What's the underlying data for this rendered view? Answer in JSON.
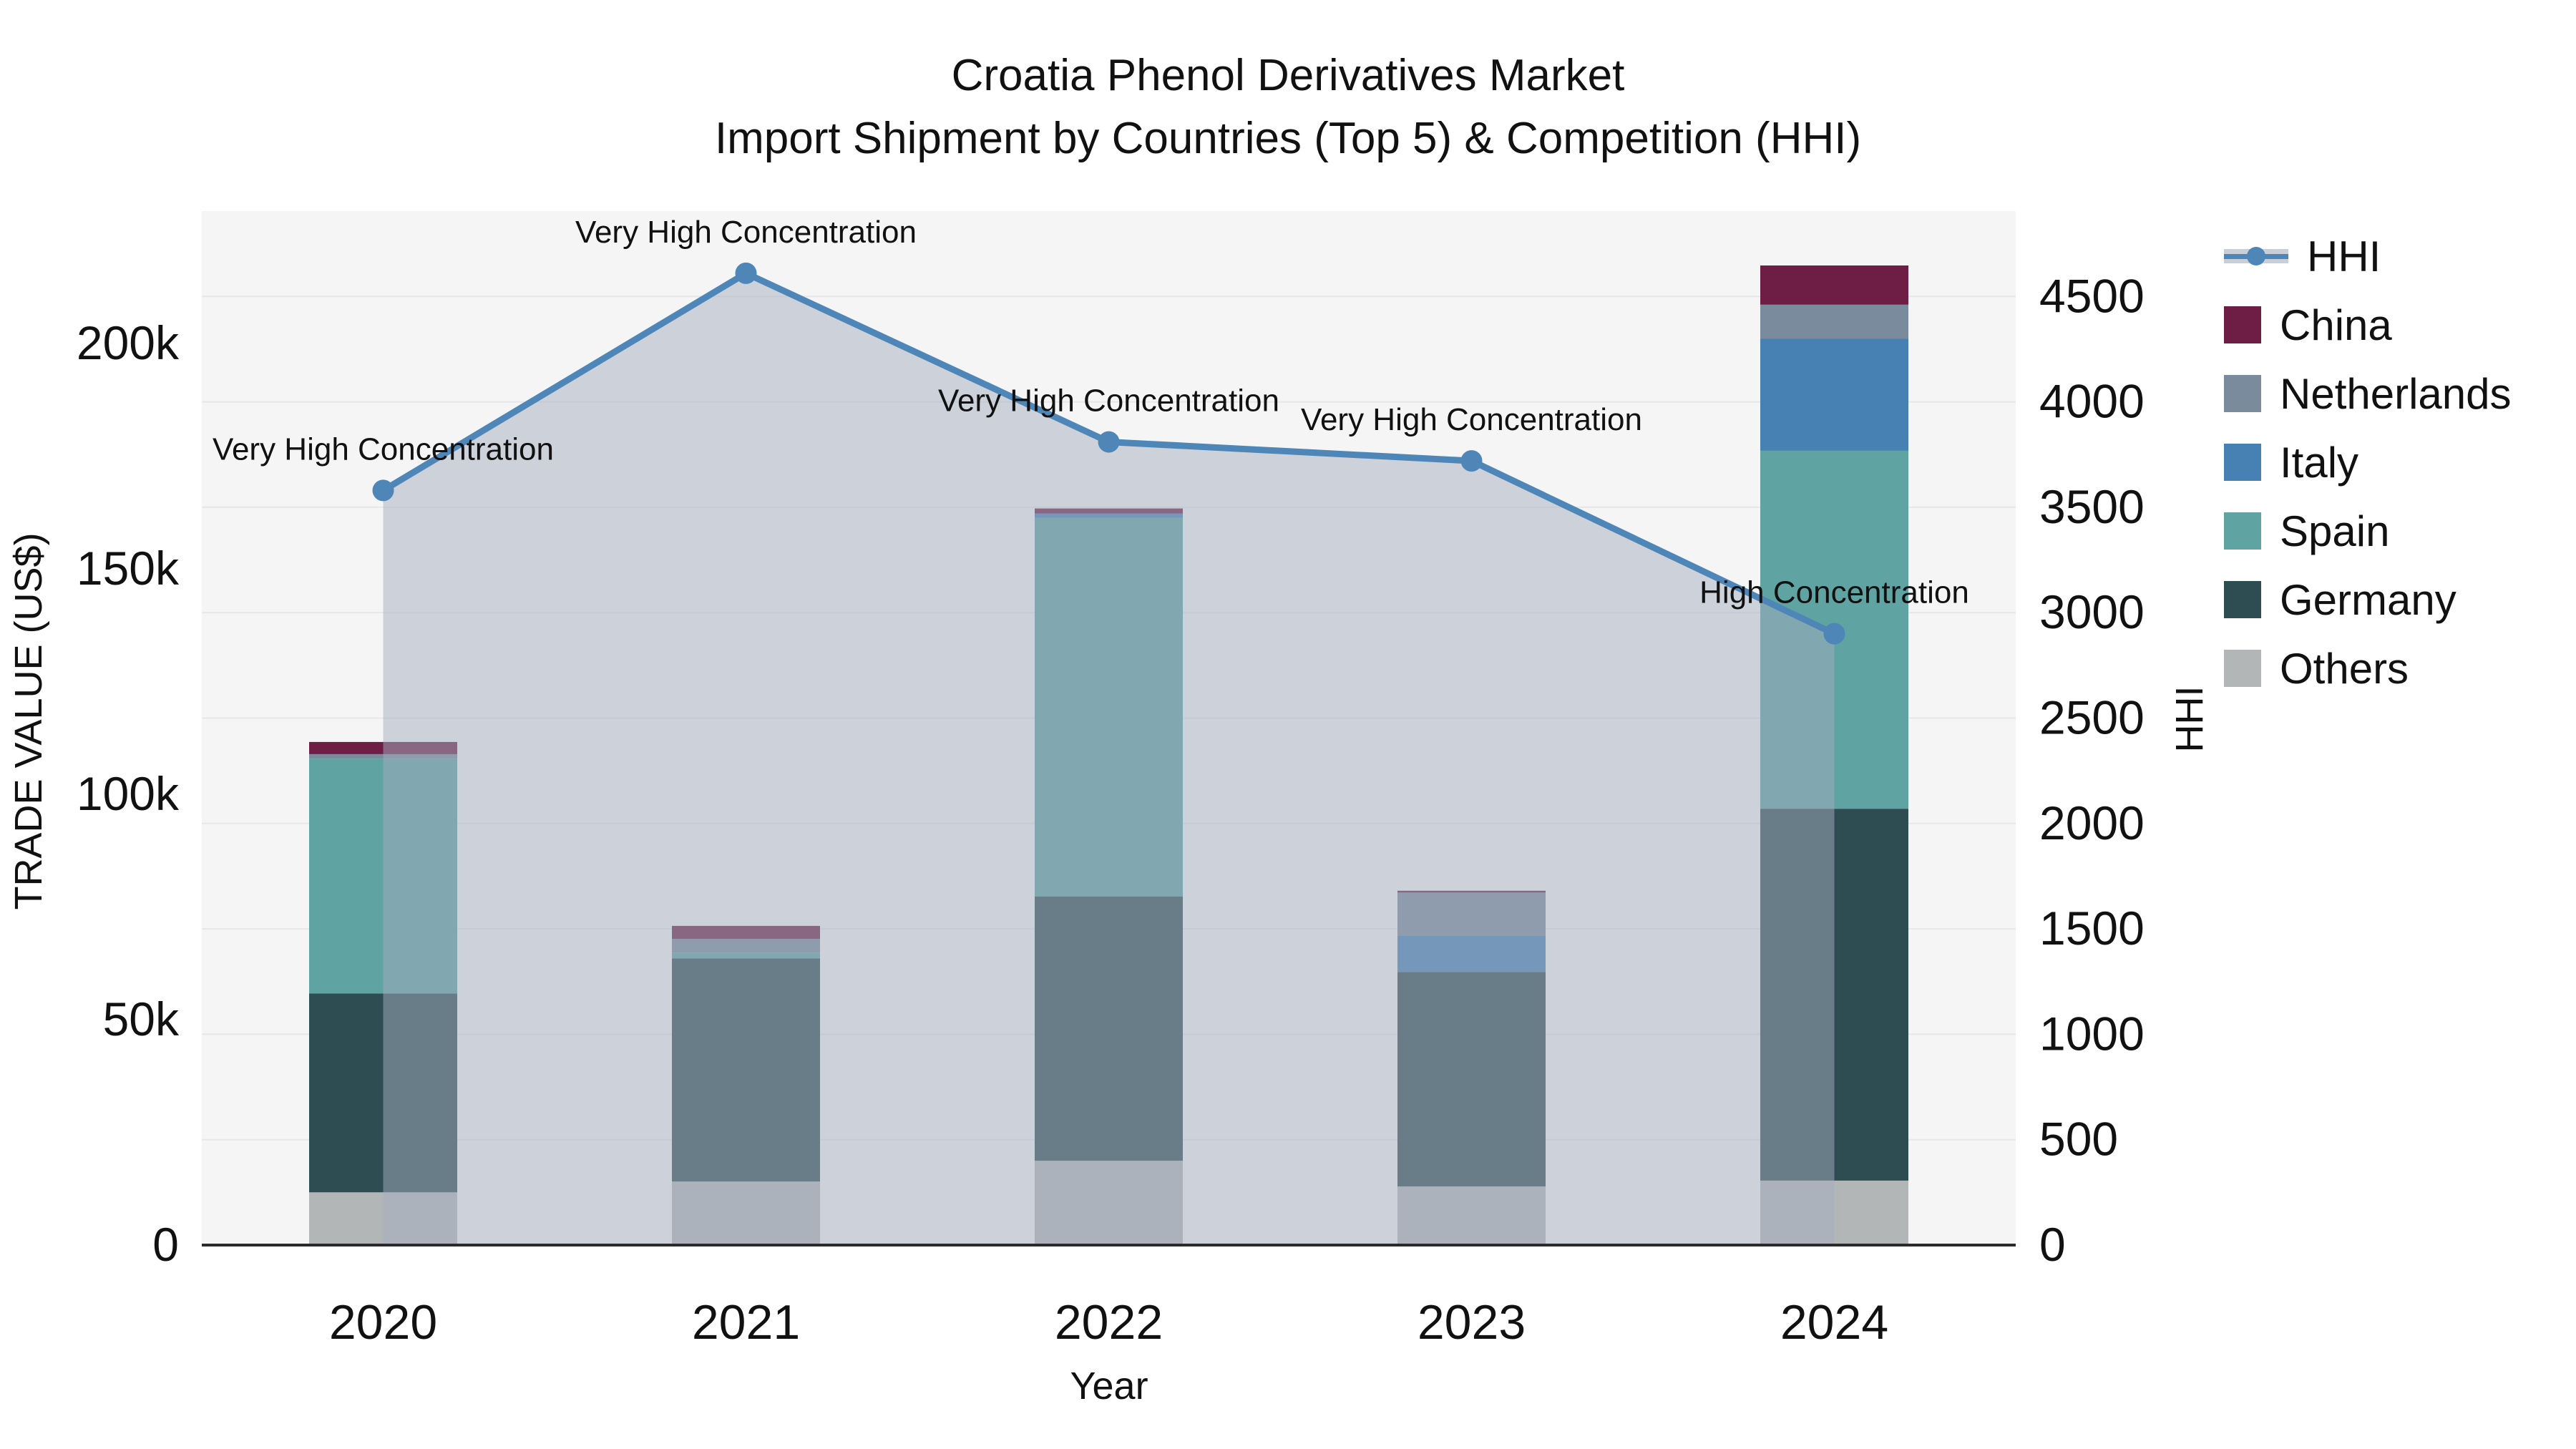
{
  "title": {
    "line1": "Croatia Phenol Derivatives Market",
    "line2": "Import Shipment by Countries (Top 5) & Competition (HHI)"
  },
  "legend": {
    "items": [
      {
        "label": "HHI",
        "type": "line",
        "color": "#4e86b8",
        "band": "#c9cfd9"
      },
      {
        "label": "China",
        "type": "swatch",
        "color": "#6e1e44"
      },
      {
        "label": "Netherlands",
        "type": "swatch",
        "color": "#7a8b9d"
      },
      {
        "label": "Italy",
        "type": "swatch",
        "color": "#4781b4"
      },
      {
        "label": "Spain",
        "type": "swatch",
        "color": "#5fa3a2"
      },
      {
        "label": "Germany",
        "type": "swatch",
        "color": "#2e4d52"
      },
      {
        "label": "Others",
        "type": "swatch",
        "color": "#b3b6b6"
      }
    ]
  },
  "chart_data": {
    "type": "combo-stacked-bar-line",
    "categories": [
      "2020",
      "2021",
      "2022",
      "2023",
      "2024"
    ],
    "bar_unit": "thousand US$",
    "series": [
      {
        "name": "Others",
        "color": "#b3b6b6",
        "values": [
          11.7,
          14.1,
          18.7,
          13.0,
          14.3
        ]
      },
      {
        "name": "Germany",
        "color": "#2e4d52",
        "values": [
          44.1,
          49.5,
          58.6,
          47.6,
          82.5
        ]
      },
      {
        "name": "Spain",
        "color": "#5fa3a2",
        "values": [
          52.1,
          1.3,
          84.0,
          0,
          79.4
        ]
      },
      {
        "name": "Italy",
        "color": "#4781b4",
        "values": [
          0,
          0,
          1.0,
          8.1,
          24.9
        ]
      },
      {
        "name": "Netherlands",
        "color": "#7a8b9d",
        "values": [
          1.0,
          3.0,
          0,
          9.5,
          7.5
        ]
      },
      {
        "name": "China",
        "color": "#6e1e44",
        "values": [
          2.7,
          2.9,
          1.1,
          0.4,
          8.7
        ]
      }
    ],
    "bar_totals_k": [
      111.6,
      70.8,
      163.4,
      78.6,
      217.3
    ],
    "line_series": {
      "name": "HHI",
      "axis": "right",
      "color": "#4e86b8",
      "values": [
        3580,
        4610,
        3810,
        3720,
        2900
      ]
    },
    "annotations": [
      "Very High Concentration",
      "Very High Concentration",
      "Very High Concentration",
      "Very High Concentration",
      "High Concentration"
    ],
    "left_axis": {
      "label": "TRADE VALUE (US$)",
      "ticks": [
        "0",
        "50k",
        "100k",
        "150k",
        "200k"
      ],
      "tick_values_k": [
        0,
        50,
        100,
        150,
        200
      ],
      "range_k": [
        0,
        229
      ]
    },
    "right_axis": {
      "label": "HHI",
      "tick_values": [
        0,
        500,
        1000,
        1500,
        2000,
        2500,
        3000,
        3500,
        4000,
        4500
      ],
      "range": [
        0,
        4900
      ]
    },
    "x_axis": {
      "label": "Year"
    },
    "layout_hints": {
      "grid": "faint horizontal",
      "legend_position": "right",
      "area_fill_under_line": true
    }
  },
  "colors": {
    "plot_bg": "#f5f5f5",
    "grid": "#e7e7e9",
    "axis_line": "#2b2b2b",
    "tick_text": "#111111",
    "annotation_text": "#111111",
    "area_fill": "rgba(163,173,191,0.5)",
    "hhi_line": "#4e86b8"
  }
}
